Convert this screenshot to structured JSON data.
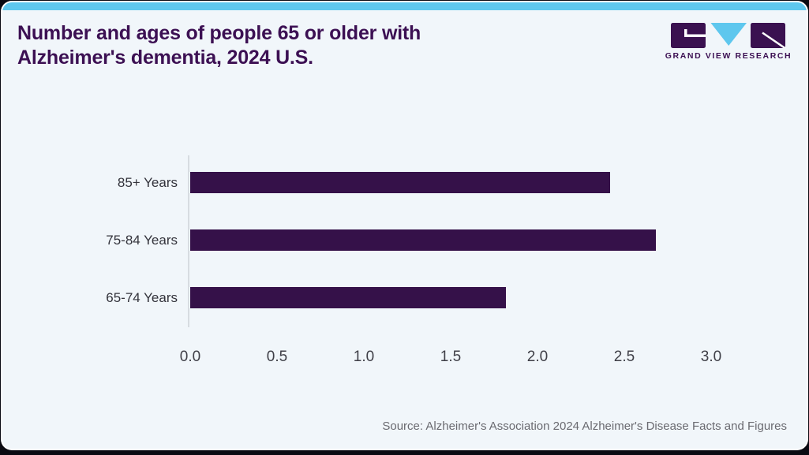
{
  "header": {
    "title_lines": [
      "Number and ages of people 65 or older with",
      "Alzheimer's dementia, 2024 U.S."
    ]
  },
  "logo": {
    "wordmark": "GRAND VIEW RESEARCH"
  },
  "chart_data": {
    "type": "bar",
    "orientation": "horizontal",
    "title": "Number and ages of people 65 or older with Alzheimer's dementia, 2024 U.S.",
    "categories": [
      "85+ Years",
      "75-84 Years",
      "65-74 Years"
    ],
    "values": [
      2.42,
      2.68,
      1.82
    ],
    "x_tick_labels": [
      "0.0",
      "0.5",
      "1.0",
      "1.5",
      "2.0",
      "2.5",
      "3.0"
    ],
    "xlim": [
      0.0,
      3.0
    ],
    "xlabel": "",
    "ylabel": "",
    "grid": false,
    "legend": false
  },
  "footer": {
    "source": "Source: Alzheimer's Association 2024 Alzheimer's Disease Facts and Figures"
  },
  "colors": {
    "page_bg": "#0a0a12",
    "card_bg": "#f1f6fa",
    "accent_bar": "#5ec7ee",
    "title": "#3c1053",
    "bar": "#351149",
    "logo_purple": "#3a1150",
    "logo_cyan": "#5ec7ee",
    "axis_line": "#d7dce1",
    "tick_text": "#3f3f47",
    "category_text": "#33333b",
    "source_text": "#6a6a70"
  }
}
